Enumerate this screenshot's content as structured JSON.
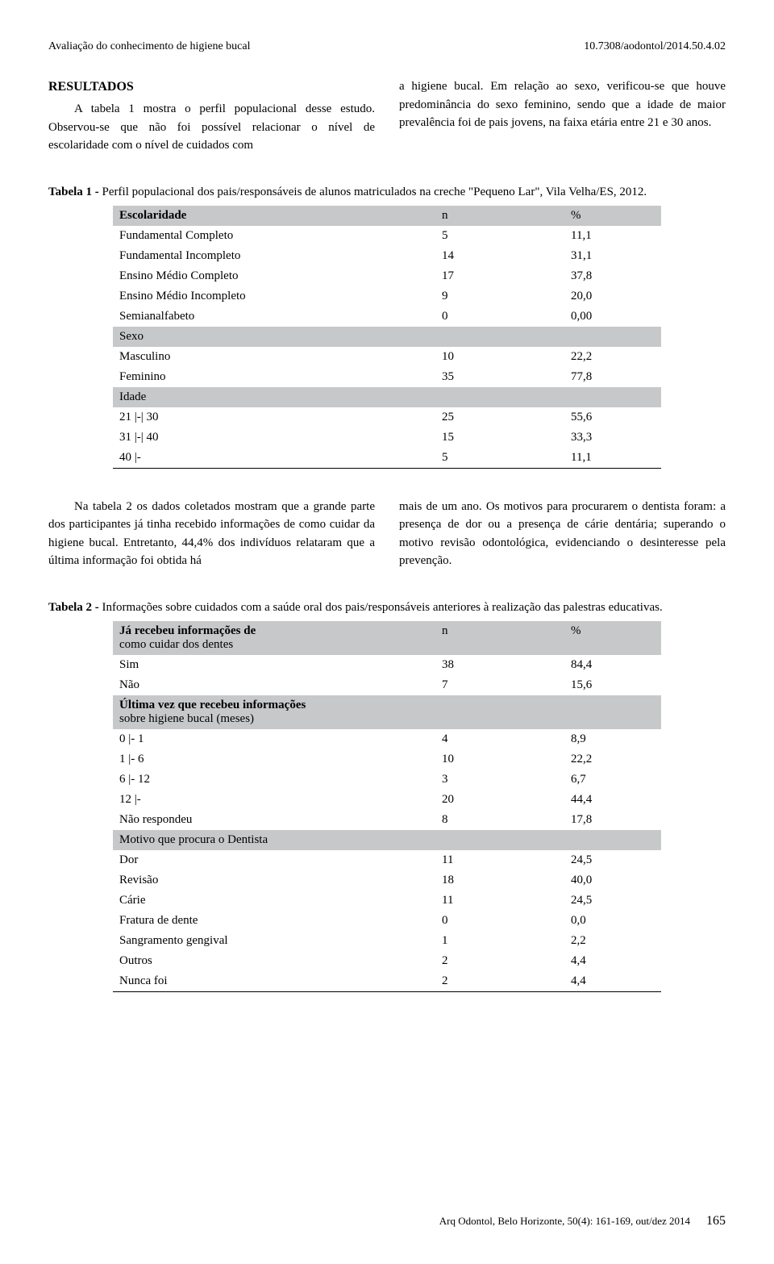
{
  "header": {
    "left": "Avaliação do conhecimento de higiene bucal",
    "right": "10.7308/aodontol/2014.50.4.02"
  },
  "resultados": {
    "heading": "RESULTADOS",
    "col1": "A tabela 1 mostra o perfil populacional desse estudo. Observou-se que não foi possível relacionar o nível de escolaridade com o nível de cuidados com",
    "col2": "a higiene bucal. Em relação ao sexo, verificou-se que houve predominância do sexo feminino, sendo que a idade de maior prevalência foi de pais jovens, na faixa etária entre 21 e 30 anos."
  },
  "table1": {
    "caption_bold": "Tabela 1 -",
    "caption_rest": " Perfil populacional dos pais/responsáveis de alunos matriculados na creche \"Pequeno Lar\", Vila Velha/ES, 2012.",
    "col_headers": [
      "Escolaridade",
      "n",
      "%"
    ],
    "section1_rows": [
      [
        "Fundamental Completo",
        "5",
        "11,1"
      ],
      [
        "Fundamental Incompleto",
        "14",
        "31,1"
      ],
      [
        "Ensino Médio Completo",
        "17",
        "37,8"
      ],
      [
        "Ensino Médio Incompleto",
        "9",
        "20,0"
      ],
      [
        "Semianalfabeto",
        "0",
        "0,00"
      ]
    ],
    "section2_label": "Sexo",
    "section2_rows": [
      [
        "Masculino",
        "10",
        "22,2"
      ],
      [
        "Feminino",
        "35",
        "77,8"
      ]
    ],
    "section3_label": "Idade",
    "section3_rows": [
      [
        "21 |-| 30",
        "25",
        "55,6"
      ],
      [
        "31 |-| 40",
        "15",
        "33,3"
      ],
      [
        "40 |-",
        "5",
        "11,1"
      ]
    ]
  },
  "mid_text": {
    "col1": "Na tabela 2 os dados coletados mostram que a grande parte dos participantes já tinha recebido informações de como cuidar da higiene bucal. Entretanto, 44,4% dos indivíduos relataram que a última informação foi obtida há",
    "col2": "mais de um ano. Os motivos para procurarem o dentista foram: a presença de dor ou a presença de cárie dentária; superando o motivo revisão odontológica, evidenciando o desinteresse pela prevenção."
  },
  "table2": {
    "caption_bold": "Tabela 2 -",
    "caption_rest": " Informações sobre cuidados com a saúde oral dos pais/responsáveis anteriores à realização das palestras educativas.",
    "header1_bold": "Já recebeu informações de",
    "header1_rest": "como cuidar dos dentes",
    "header_n": "n",
    "header_pct": "%",
    "section1_rows": [
      [
        "Sim",
        "38",
        "84,4"
      ],
      [
        "Não",
        "7",
        "15,6"
      ]
    ],
    "section2_bold": "Última vez que recebeu informações",
    "section2_rest": "sobre higiene bucal (meses)",
    "section2_rows": [
      [
        "0 |- 1",
        "4",
        "8,9"
      ],
      [
        "1 |- 6",
        "10",
        "22,2"
      ],
      [
        "6 |- 12",
        "3",
        "6,7"
      ],
      [
        "12 |-",
        "20",
        "44,4"
      ],
      [
        "Não respondeu",
        "8",
        "17,8"
      ]
    ],
    "section3_label": "Motivo que procura o Dentista",
    "section3_rows": [
      [
        "Dor",
        "11",
        "24,5"
      ],
      [
        "Revisão",
        "18",
        "40,0"
      ],
      [
        "Cárie",
        "11",
        "24,5"
      ],
      [
        "Fratura de dente",
        "0",
        "0,0"
      ],
      [
        "Sangramento gengival",
        "1",
        "2,2"
      ],
      [
        "Outros",
        "2",
        "4,4"
      ],
      [
        "Nunca foi",
        "2",
        "4,4"
      ]
    ]
  },
  "footer": {
    "citation": "Arq Odontol, Belo Horizonte, 50(4): 161-169, out/dez 2014",
    "page": "165"
  },
  "colors": {
    "section_bg": "#c7c8ca",
    "text": "#000000",
    "background": "#ffffff"
  }
}
